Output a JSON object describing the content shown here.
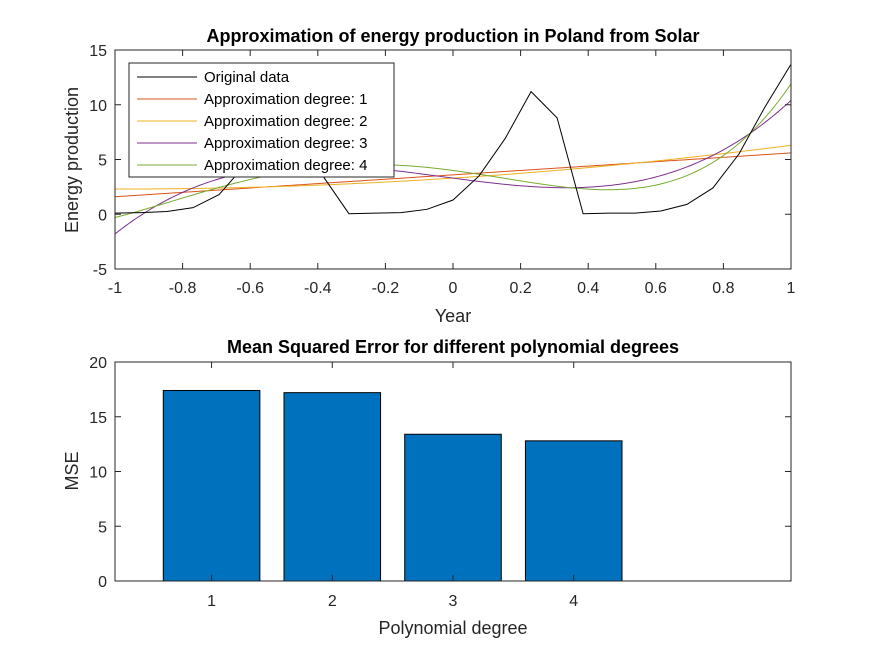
{
  "chart_data": [
    {
      "type": "line",
      "title": "Approximation of energy production in Poland from Solar",
      "xlabel": "Year",
      "ylabel": "Energy production",
      "xlim": [
        -1,
        1
      ],
      "ylim": [
        -5,
        15
      ],
      "xticks": [
        "-1",
        "-0.8",
        "-0.6",
        "-0.4",
        "-0.2",
        "0",
        "0.2",
        "0.4",
        "0.6",
        "0.8",
        "1"
      ],
      "yticks": [
        "-5",
        "0",
        "5",
        "10",
        "15"
      ],
      "legend_position": "top-left",
      "grid": false,
      "series": [
        {
          "name": "Original data",
          "color": "#000000",
          "x": [
            -1,
            -0.923,
            -0.846,
            -0.769,
            -0.692,
            -0.615,
            -0.538,
            -0.462,
            -0.385,
            -0.308,
            -0.231,
            -0.154,
            -0.077,
            0,
            0.077,
            0.154,
            0.231,
            0.308,
            0.385,
            0.462,
            0.538,
            0.615,
            0.692,
            0.769,
            0.846,
            0.923,
            1
          ],
          "y": [
            0.1,
            0.15,
            0.25,
            0.6,
            1.8,
            4.5,
            7.0,
            6.5,
            3.5,
            0.05,
            0.1,
            0.15,
            0.45,
            1.3,
            3.5,
            6.9,
            11.2,
            8.8,
            0.05,
            0.1,
            0.1,
            0.3,
            0.9,
            2.4,
            5.5,
            9.8,
            13.7
          ]
        },
        {
          "name": "Approximation degree: 1",
          "color": "#D95319",
          "coeffs": [
            3.6,
            2.0
          ]
        },
        {
          "name": "Approximation degree: 2",
          "color": "#EDB120",
          "coeffs": [
            3.3,
            2.0,
            1.0
          ]
        },
        {
          "name": "Approximation degree: 3",
          "color": "#7E2F8E",
          "coeffs": [
            3.3,
            -4.1,
            1.0,
            10.2
          ]
        },
        {
          "name": "Approximation degree: 4",
          "color": "#77AC30",
          "coeffs": [
            4.0,
            -4.1,
            -5.7,
            10.2,
            7.5
          ]
        }
      ]
    },
    {
      "type": "bar",
      "title": "Mean Squared Error for different polynomial degrees",
      "xlabel": "Polynomial degree",
      "ylabel": "MSE",
      "categories": [
        "1",
        "2",
        "3",
        "4"
      ],
      "values": [
        17.4,
        17.2,
        13.4,
        12.8
      ],
      "xlim": [
        0.2,
        5.8
      ],
      "ylim": [
        0,
        20
      ],
      "yticks": [
        "0",
        "5",
        "10",
        "15",
        "20"
      ],
      "bar_color": "#0072BD"
    }
  ]
}
